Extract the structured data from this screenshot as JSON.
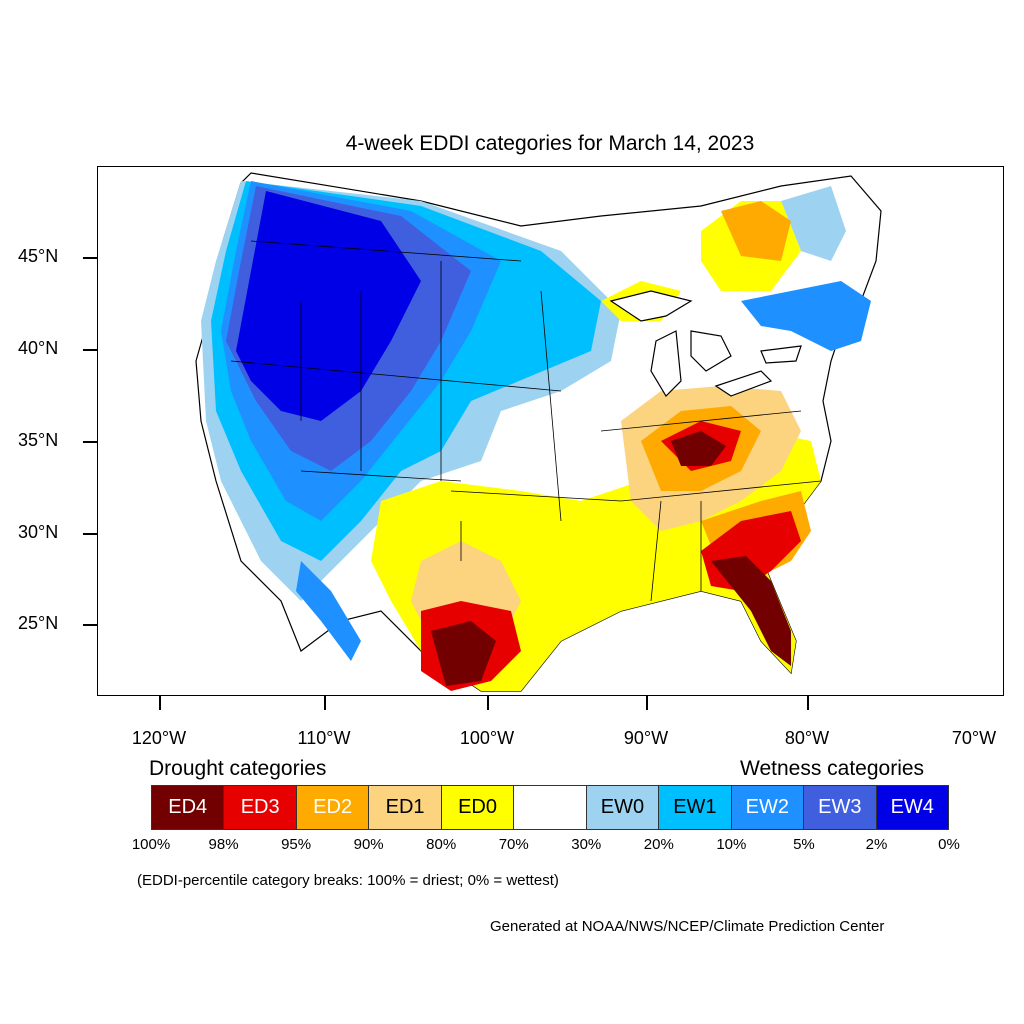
{
  "title": "4-week EDDI categories for March 14, 2023",
  "map": {
    "lat_labels": [
      "45°N",
      "40°N",
      "35°N",
      "30°N",
      "25°N"
    ],
    "lon_labels": [
      "120°W",
      "110°W",
      "100°W",
      "90°W",
      "80°W",
      "70°W"
    ]
  },
  "legend": {
    "drought_heading": "Drought categories",
    "wetness_heading": "Wetness categories",
    "categories": [
      {
        "label": "ED4",
        "color": "#730000",
        "text_color": "#ffffff"
      },
      {
        "label": "ED3",
        "color": "#e60000",
        "text_color": "#ffffff"
      },
      {
        "label": "ED2",
        "color": "#ffaa00",
        "text_color": "#ffffff"
      },
      {
        "label": "ED1",
        "color": "#fcd37f",
        "text_color": "#000000"
      },
      {
        "label": "ED0",
        "color": "#ffff00",
        "text_color": "#000000"
      },
      {
        "label": "",
        "color": "#ffffff",
        "text_color": "#000000"
      },
      {
        "label": "EW0",
        "color": "#9dd3f0",
        "text_color": "#000000"
      },
      {
        "label": "EW1",
        "color": "#00bfff",
        "text_color": "#000000"
      },
      {
        "label": "EW2",
        "color": "#1e90ff",
        "text_color": "#ffffff"
      },
      {
        "label": "EW3",
        "color": "#3f5fdf",
        "text_color": "#ffffff"
      },
      {
        "label": "EW4",
        "color": "#0000e6",
        "text_color": "#ffffff"
      }
    ],
    "breaks": [
      "100%",
      "98%",
      "95%",
      "90%",
      "80%",
      "70%",
      "30%",
      "20%",
      "10%",
      "5%",
      "2%",
      "0%"
    ]
  },
  "note": "(EDDI-percentile category breaks: 100% = driest; 0% = wettest)",
  "credit": "Generated at NOAA/NWS/NCEP/Climate Prediction Center"
}
